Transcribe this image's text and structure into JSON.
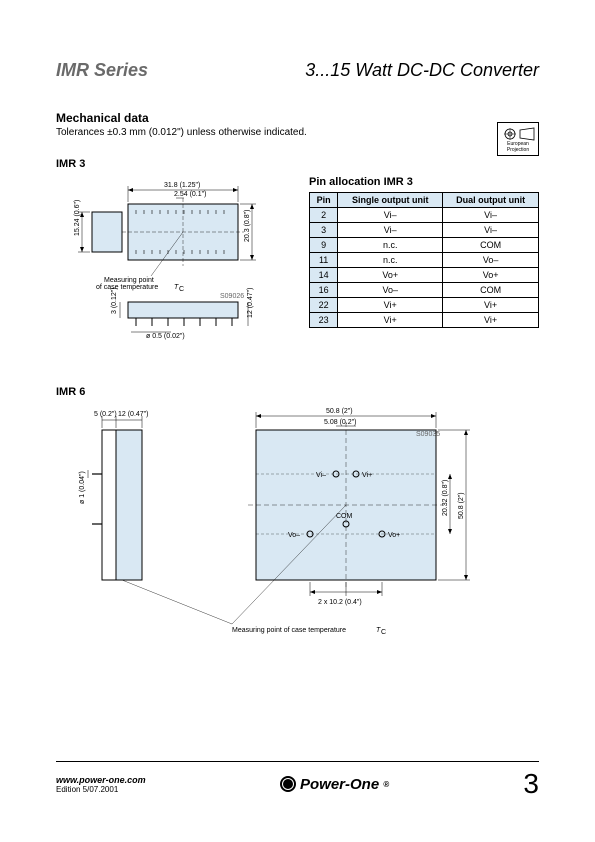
{
  "header": {
    "series": "IMR Series",
    "product": "3...15 Watt DC-DC Converter"
  },
  "mechanical": {
    "title": "Mechanical data",
    "tolerance": "Tolerances ±0.3 mm (0.012\") unless otherwise indicated."
  },
  "projection": {
    "label": "European Projection"
  },
  "imr3": {
    "title": "IMR 3",
    "dims": {
      "width_top": "31.8 (1.25\")",
      "pitch": "2.54 (0.1\")",
      "height_left": "15.24 (0.6\")",
      "height_right": "20.3 (0.8\")",
      "side_h": "3 (0.12\")",
      "side_h2": "12 (0.47\")",
      "pin_dia": "ø 0.5 (0.02\")",
      "note_measuring": "Measuring point of case temperature",
      "note_tc": "T",
      "note_tc_sub": "C",
      "drawing_id": "S09026"
    }
  },
  "pin_table": {
    "title": "Pin allocation IMR 3",
    "headers": [
      "Pin",
      "Single output unit",
      "Dual output unit"
    ],
    "rows": [
      [
        "2",
        "Vi–",
        "Vi–"
      ],
      [
        "3",
        "Vi–",
        "Vi–"
      ],
      [
        "9",
        "n.c.",
        "COM"
      ],
      [
        "11",
        "n.c.",
        "Vo–"
      ],
      [
        "14",
        "Vo+",
        "Vo+"
      ],
      [
        "16",
        "Vo–",
        "COM"
      ],
      [
        "22",
        "Vi+",
        "Vi+"
      ],
      [
        "23",
        "Vi+",
        "Vi+"
      ]
    ]
  },
  "imr6": {
    "title": "IMR 6",
    "dims": {
      "side_a": "5 (0.2\")",
      "side_b": "12 (0.47\")",
      "pin_dia": "ø 1 (0.04\")",
      "top_w": "50.8 (2\")",
      "top_pitch": "5.08 (0.2\")",
      "right_h1": "20.32 (0.8\")",
      "right_h2": "50.8 (2\")",
      "bot_pitch": "2 x 10.2 (0.4\")",
      "drawing_id": "S09035",
      "label_vi_minus": "Vi–",
      "label_vi_plus": "Vi+",
      "label_com": "COM",
      "label_vo_minus": "Vo–",
      "label_vo_plus": "Vo+",
      "note_measuring": "Measuring point of case temperature",
      "note_tc": "T",
      "note_tc_sub": "C"
    }
  },
  "footer": {
    "url": "www.power-one.com",
    "edition": "Edition 5/07.2001",
    "brand": "Power-One",
    "page": "3"
  },
  "colors": {
    "header_gray": "#6a6a6a",
    "table_header_bg": "#d9e8f3",
    "diagram_fill": "#d9e8f3",
    "line": "#000000"
  }
}
